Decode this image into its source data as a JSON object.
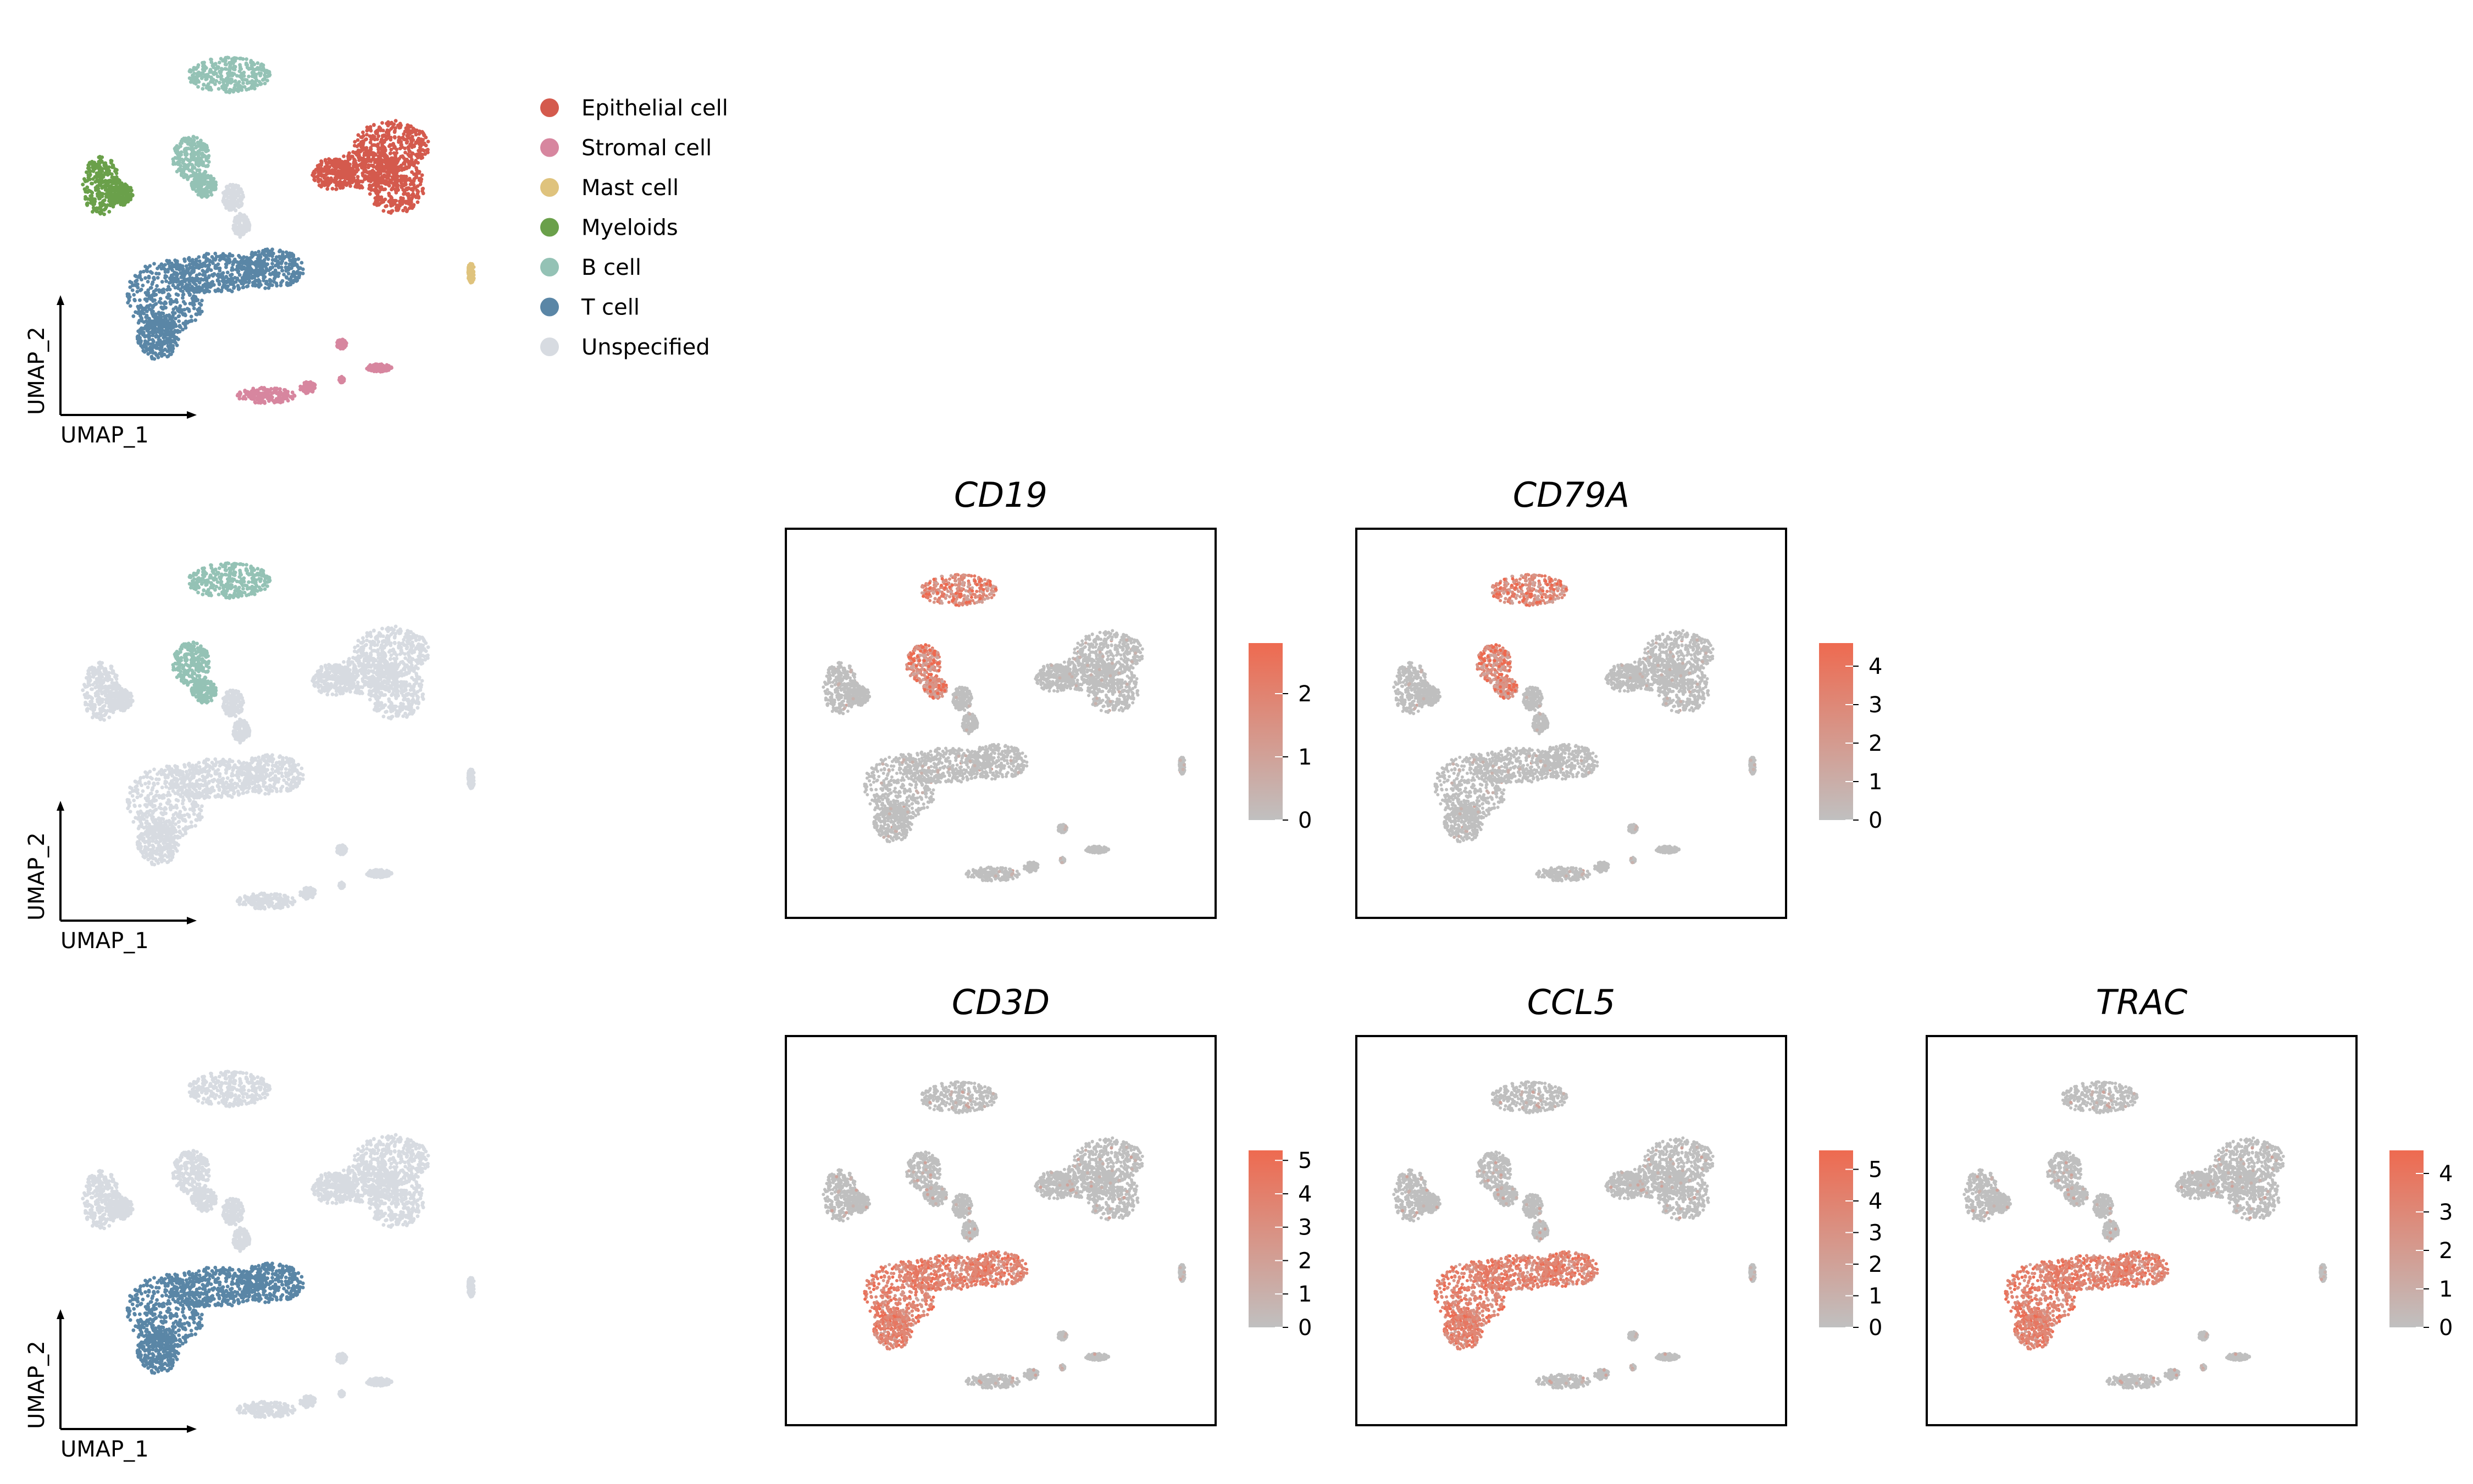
{
  "chart_data": {
    "type": "scatter",
    "axis_labels": {
      "x": "UMAP_1",
      "y": "UMAP_2"
    },
    "legend": {
      "placement": "right of first panel",
      "items": [
        {
          "label": "Epithelial cell",
          "color": "#d45a4d"
        },
        {
          "label": "Stromal cell",
          "color": "#d7869f"
        },
        {
          "label": "Mast cell",
          "color": "#dfc37d"
        },
        {
          "label": "Myeloids",
          "color": "#6aa04a"
        },
        {
          "label": "B cell",
          "color": "#94c2b5"
        },
        {
          "label": "T cell",
          "color": "#5a86a6"
        },
        {
          "label": "Unspecified",
          "color": "#d7dbe1"
        }
      ]
    },
    "highlight_panels": [
      {
        "id": "all-celltypes",
        "highlight": "all"
      },
      {
        "id": "b-cell-highlight",
        "highlight": "B cell"
      },
      {
        "id": "t-cell-highlight",
        "highlight": "T cell"
      }
    ],
    "feature_panels": [
      {
        "gene": "CD19",
        "colorbar_ticks": [
          "0",
          "1",
          "2"
        ],
        "vmax": 2.8,
        "high_in": "B cell",
        "low_color": "#c0c0c0",
        "high_color": "#ee6a50"
      },
      {
        "gene": "CD79A",
        "colorbar_ticks": [
          "0",
          "1",
          "2",
          "3",
          "4"
        ],
        "vmax": 4.6,
        "high_in": "B cell",
        "low_color": "#c0c0c0",
        "high_color": "#ee6a50"
      },
      {
        "gene": "CD3D",
        "colorbar_ticks": [
          "0",
          "1",
          "2",
          "3",
          "4",
          "5"
        ],
        "vmax": 5.3,
        "high_in": "T cell",
        "low_color": "#c0c0c0",
        "high_color": "#ee6a50"
      },
      {
        "gene": "CCL5",
        "colorbar_ticks": [
          "0",
          "1",
          "2",
          "3",
          "4",
          "5"
        ],
        "vmax": 5.6,
        "high_in": "T cell",
        "low_color": "#c0c0c0",
        "high_color": "#ee6a50"
      },
      {
        "gene": "TRAC",
        "colorbar_ticks": [
          "0",
          "1",
          "2",
          "3",
          "4"
        ],
        "vmax": 4.6,
        "high_in": "T cell",
        "low_color": "#c0c0c0",
        "high_color": "#ee6a50"
      }
    ]
  }
}
